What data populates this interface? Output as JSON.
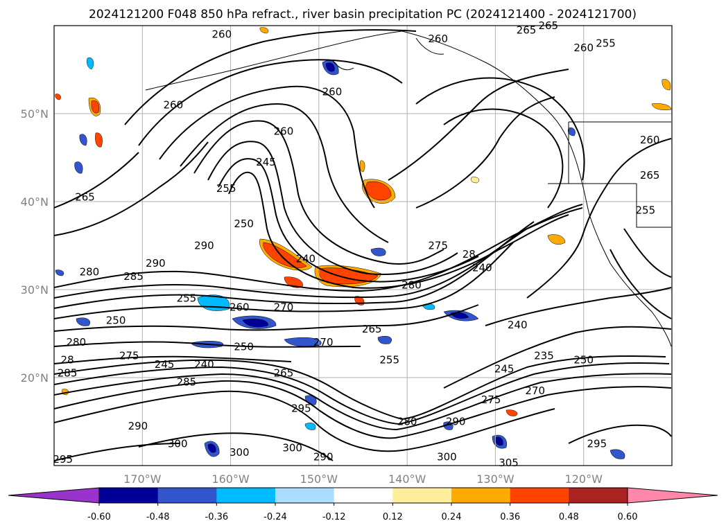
{
  "title": "2024121200 F048 850 hPa refract., river basin precipitation PC (2024121400 - 2024121700)",
  "map": {
    "extent_lon": [
      -180,
      -110
    ],
    "extent_lat": [
      10,
      60
    ],
    "lon_ticks": [
      {
        "lon": -170,
        "label": "170°W"
      },
      {
        "lon": -160,
        "label": "160°W"
      },
      {
        "lon": -150,
        "label": "150°W"
      },
      {
        "lon": -140,
        "label": "140°W"
      },
      {
        "lon": -130,
        "label": "130°W"
      },
      {
        "lon": -120,
        "label": "120°W"
      }
    ],
    "lat_ticks": [
      {
        "lat": 50,
        "label": "50°N"
      },
      {
        "lat": 40,
        "label": "40°N"
      },
      {
        "lat": 30,
        "label": "30°N"
      },
      {
        "lat": 20,
        "label": "20°N"
      }
    ],
    "grid": true,
    "contour_color": "#000000",
    "contour_labels": [
      {
        "lon": -161.0,
        "lat": 59.0,
        "text": "260"
      },
      {
        "lon": -166.5,
        "lat": 51.0,
        "text": "260"
      },
      {
        "lon": -176.5,
        "lat": 40.5,
        "text": "265"
      },
      {
        "lon": -148.5,
        "lat": 52.5,
        "text": "260"
      },
      {
        "lon": -136.5,
        "lat": 58.5,
        "text": "260"
      },
      {
        "lon": -126.5,
        "lat": 59.5,
        "text": "265"
      },
      {
        "lon": -124.0,
        "lat": 60.0,
        "text": "265"
      },
      {
        "lon": -120.0,
        "lat": 57.5,
        "text": "260"
      },
      {
        "lon": -117.5,
        "lat": 58.0,
        "text": "255"
      },
      {
        "lon": -154.0,
        "lat": 48.0,
        "text": "260"
      },
      {
        "lon": -156.0,
        "lat": 44.5,
        "text": "245"
      },
      {
        "lon": -160.5,
        "lat": 41.5,
        "text": "255"
      },
      {
        "lon": -158.5,
        "lat": 37.5,
        "text": "250"
      },
      {
        "lon": -163.0,
        "lat": 35.0,
        "text": "290"
      },
      {
        "lon": -151.5,
        "lat": 33.5,
        "text": "240"
      },
      {
        "lon": -136.5,
        "lat": 35.0,
        "text": "275"
      },
      {
        "lon": -133.0,
        "lat": 34.0,
        "text": "28"
      },
      {
        "lon": -131.5,
        "lat": 32.5,
        "text": "240"
      },
      {
        "lon": -139.5,
        "lat": 30.5,
        "text": "280"
      },
      {
        "lon": -168.5,
        "lat": 33.0,
        "text": "290"
      },
      {
        "lon": -171.0,
        "lat": 31.5,
        "text": "285"
      },
      {
        "lon": -176.0,
        "lat": 32.0,
        "text": "280"
      },
      {
        "lon": -165.0,
        "lat": 29.0,
        "text": "255"
      },
      {
        "lon": -159.0,
        "lat": 28.0,
        "text": "260"
      },
      {
        "lon": -154.0,
        "lat": 28.0,
        "text": "270"
      },
      {
        "lon": -173.0,
        "lat": 26.5,
        "text": "250"
      },
      {
        "lon": -177.5,
        "lat": 24.0,
        "text": "280"
      },
      {
        "lon": -171.5,
        "lat": 22.5,
        "text": "275"
      },
      {
        "lon": -167.5,
        "lat": 21.5,
        "text": "245"
      },
      {
        "lon": -163.0,
        "lat": 21.5,
        "text": "240"
      },
      {
        "lon": -158.5,
        "lat": 23.5,
        "text": "250"
      },
      {
        "lon": -149.5,
        "lat": 24.0,
        "text": "270"
      },
      {
        "lon": -144.0,
        "lat": 25.5,
        "text": "265"
      },
      {
        "lon": -154.0,
        "lat": 20.5,
        "text": "265"
      },
      {
        "lon": -142.0,
        "lat": 22.0,
        "text": "255"
      },
      {
        "lon": -178.5,
        "lat": 20.5,
        "text": "285"
      },
      {
        "lon": -165.0,
        "lat": 19.5,
        "text": "285"
      },
      {
        "lon": -152.0,
        "lat": 16.5,
        "text": "295"
      },
      {
        "lon": -140.0,
        "lat": 15.0,
        "text": "280"
      },
      {
        "lon": -134.5,
        "lat": 15.0,
        "text": "290"
      },
      {
        "lon": -130.5,
        "lat": 17.5,
        "text": "275"
      },
      {
        "lon": -125.5,
        "lat": 18.5,
        "text": "270"
      },
      {
        "lon": -129.0,
        "lat": 21.0,
        "text": "245"
      },
      {
        "lon": -124.5,
        "lat": 22.5,
        "text": "235"
      },
      {
        "lon": -120.0,
        "lat": 22.0,
        "text": "250"
      },
      {
        "lon": -127.5,
        "lat": 26.0,
        "text": "240"
      },
      {
        "lon": -170.5,
        "lat": 14.5,
        "text": "290"
      },
      {
        "lon": -166.0,
        "lat": 12.5,
        "text": "300"
      },
      {
        "lon": -159.0,
        "lat": 11.5,
        "text": "300"
      },
      {
        "lon": -153.0,
        "lat": 12.0,
        "text": "300"
      },
      {
        "lon": -149.5,
        "lat": 11.0,
        "text": "290"
      },
      {
        "lon": -135.5,
        "lat": 11.0,
        "text": "300"
      },
      {
        "lon": -128.5,
        "lat": 10.3,
        "text": "305"
      },
      {
        "lon": -118.5,
        "lat": 12.5,
        "text": "295"
      },
      {
        "lon": -179.0,
        "lat": 10.7,
        "text": "295"
      },
      {
        "lon": -112.5,
        "lat": 47.0,
        "text": "260"
      },
      {
        "lon": -112.5,
        "lat": 43.0,
        "text": "265"
      },
      {
        "lon": -113.0,
        "lat": 39.0,
        "text": "255"
      },
      {
        "lon": -178.5,
        "lat": 22.0,
        "text": "28"
      }
    ]
  },
  "colorbar": {
    "levels": [
      "-0.60",
      "-0.48",
      "-0.36",
      "-0.24",
      "-0.12",
      "0.12",
      "0.24",
      "0.36",
      "0.48",
      "0.60"
    ],
    "colors": [
      "#9933cc",
      "#000099",
      "#3355cc",
      "#00bbff",
      "#aaddff",
      "#ffffff",
      "#ffee99",
      "#ffaa00",
      "#ff4400",
      "#aa2222",
      "#ff88aa"
    ],
    "extend": "both"
  },
  "precip_colors": {
    "strong_negative": "#000099",
    "negative": "#3355cc",
    "weak_negative": "#00bbff",
    "very_weak_negative": "#aaddff",
    "weak_positive": "#ffee99",
    "positive": "#ffaa00",
    "strong_positive": "#ff4400"
  }
}
